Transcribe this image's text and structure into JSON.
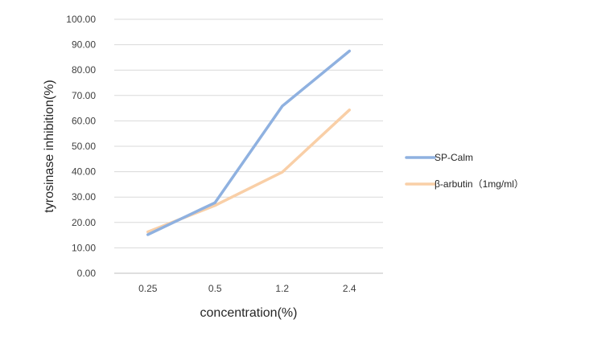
{
  "chart_data": {
    "type": "line",
    "title": "",
    "xlabel": "concentration(%)",
    "ylabel": "tyrosinase inhibition(%)",
    "categories": [
      "0.25",
      "0.5",
      "1.2",
      "2.4"
    ],
    "ylim": [
      0,
      100
    ],
    "yticks": [
      "0.00",
      "10.00",
      "20.00",
      "30.00",
      "40.00",
      "50.00",
      "60.00",
      "70.00",
      "80.00",
      "90.00",
      "100.00"
    ],
    "grid": true,
    "legend_position": "right",
    "series": [
      {
        "name": "SP-Calm",
        "values": [
          15.2,
          27.8,
          65.8,
          87.5
        ],
        "color": "#8fb1e0"
      },
      {
        "name": "β-arbutin（1mg/ml）",
        "values": [
          16.3,
          26.7,
          39.8,
          64.3
        ],
        "color": "#f9cfa7"
      }
    ]
  }
}
